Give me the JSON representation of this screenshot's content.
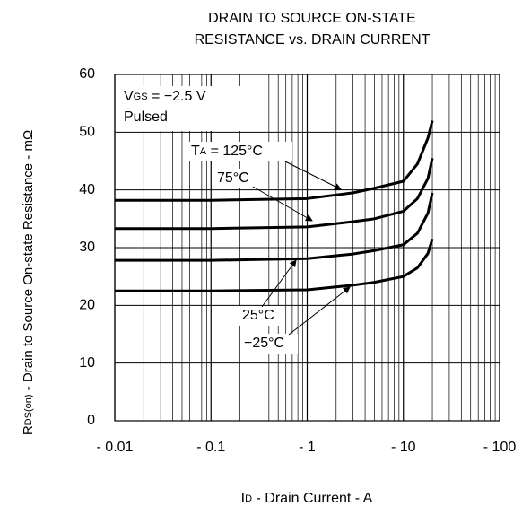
{
  "chart_data": {
    "type": "line",
    "title": [
      "DRAIN TO SOURCE ON-STATE",
      "RESISTANCE vs. DRAIN CURRENT"
    ],
    "y_label": {
      "main": "R",
      "sub": "DS(on)",
      "rest": " - Drain to Source On-state Resistance - mΩ"
    },
    "x_label": {
      "main": "I",
      "sub": "D",
      "rest": " - Drain Current - A"
    },
    "x_log": true,
    "grid": true,
    "color": "#000000",
    "xlim": [
      -0.01,
      -100
    ],
    "xticks": [
      {
        "value": -0.01,
        "label": "- 0.01"
      },
      {
        "value": -0.1,
        "label": "- 0.1"
      },
      {
        "value": -1,
        "label": "- 1"
      },
      {
        "value": -10,
        "label": "- 10"
      },
      {
        "value": -100,
        "label": "- 100"
      }
    ],
    "x_minor_ticks": [
      -0.02,
      -0.03,
      -0.04,
      -0.05,
      -0.06,
      -0.07,
      -0.08,
      -0.09,
      -0.2,
      -0.3,
      -0.4,
      -0.5,
      -0.6,
      -0.7,
      -0.8,
      -0.9,
      -2,
      -3,
      -4,
      -5,
      -6,
      -7,
      -8,
      -9,
      -20,
      -30,
      -40,
      -50,
      -60,
      -70,
      -80,
      -90
    ],
    "ylim": [
      0,
      60
    ],
    "yticks": [
      0,
      10,
      20,
      30,
      40,
      50,
      60
    ],
    "conditions": [
      {
        "main": "V",
        "sub": "GS",
        "rest": " = −2.5 V"
      },
      "Pulsed"
    ],
    "series": [
      {
        "name": {
          "main": "T",
          "sub": "A",
          "rest": " = 125°C"
        },
        "x": [
          -0.01,
          -0.1,
          -1,
          -3,
          -5,
          -10,
          -14,
          -18,
          -20
        ],
        "values": [
          38.2,
          38.2,
          38.5,
          39.5,
          40.3,
          41.5,
          44.5,
          49,
          52
        ]
      },
      {
        "name": "75°C",
        "x": [
          -0.01,
          -0.1,
          -1,
          -3,
          -5,
          -10,
          -14,
          -18,
          -20
        ],
        "values": [
          33.3,
          33.3,
          33.6,
          34.5,
          35,
          36.3,
          38.5,
          42,
          45.5
        ]
      },
      {
        "name": "25°C",
        "x": [
          -0.01,
          -0.1,
          -1,
          -3,
          -5,
          -10,
          -14,
          -18,
          -20
        ],
        "values": [
          27.8,
          27.8,
          28.1,
          28.9,
          29.5,
          30.5,
          32.5,
          36,
          39.5
        ]
      },
      {
        "name": "−25°C",
        "x": [
          -0.01,
          -0.1,
          -1,
          -3,
          -5,
          -10,
          -14,
          -18,
          -20
        ],
        "values": [
          22.5,
          22.5,
          22.7,
          23.5,
          24,
          25,
          26.5,
          29,
          31.5
        ]
      }
    ]
  }
}
